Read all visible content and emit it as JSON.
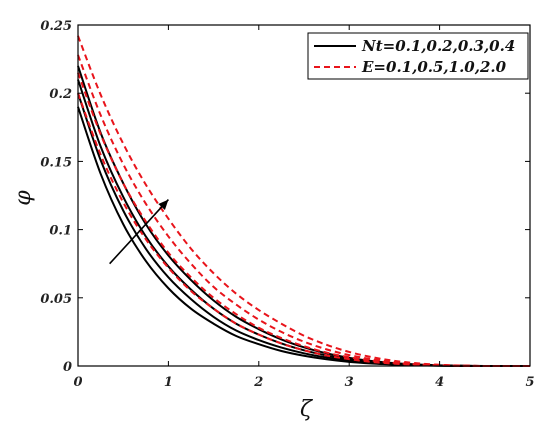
{
  "chart_data": {
    "type": "line",
    "xlabel": "ζ",
    "ylabel": "φ",
    "xlim": [
      0,
      5
    ],
    "ylim": [
      0,
      0.25
    ],
    "xticks": [
      "0",
      "1",
      "2",
      "3",
      "4",
      "5"
    ],
    "yticks": [
      "0",
      "0.05",
      "0.1",
      "0.15",
      "0.2",
      "0.25"
    ],
    "grid": false,
    "legend_position": "top-right",
    "legend": [
      {
        "label": "Nt=0.1,0.2,0.3,0.4",
        "color": "#000000",
        "style": "solid"
      },
      {
        "label": "E=0.1,0.5,1.0,2.0",
        "color": "#e8141b",
        "style": "dashed"
      }
    ],
    "x": [
      0,
      0.25,
      0.5,
      0.75,
      1,
      1.25,
      1.5,
      1.75,
      2,
      2.25,
      2.5,
      2.75,
      3,
      3.25,
      3.5,
      3.75,
      4,
      4.25,
      4.5,
      4.75,
      5
    ],
    "series": [
      {
        "group": "Nt",
        "color": "#000000",
        "style": "solid",
        "values": [
          0.19,
          0.141,
          0.104,
          0.077,
          0.057,
          0.042,
          0.031,
          0.022,
          0.016,
          0.011,
          0.0075,
          0.0049,
          0.003,
          0.0018,
          0.001,
          0.0005,
          0.0002,
          0.0001,
          0,
          0,
          0
        ]
      },
      {
        "group": "Nt",
        "color": "#000000",
        "style": "solid",
        "values": [
          0.2,
          0.151,
          0.114,
          0.086,
          0.065,
          0.049,
          0.036,
          0.026,
          0.019,
          0.0135,
          0.0093,
          0.0062,
          0.0039,
          0.0024,
          0.0013,
          0.0007,
          0.0003,
          0.0001,
          0,
          0,
          0
        ]
      },
      {
        "group": "Nt",
        "color": "#000000",
        "style": "solid",
        "values": [
          0.21,
          0.161,
          0.124,
          0.095,
          0.073,
          0.056,
          0.042,
          0.031,
          0.023,
          0.0165,
          0.0115,
          0.0077,
          0.005,
          0.0031,
          0.0017,
          0.0009,
          0.0004,
          0.0001,
          0,
          0,
          0
        ]
      },
      {
        "group": "Nt",
        "color": "#000000",
        "style": "solid",
        "values": [
          0.22,
          0.171,
          0.134,
          0.104,
          0.081,
          0.063,
          0.048,
          0.036,
          0.027,
          0.0195,
          0.0137,
          0.0093,
          0.006,
          0.0037,
          0.0021,
          0.0011,
          0.0005,
          0.0002,
          0,
          0,
          0
        ]
      },
      {
        "group": "E",
        "color": "#e8141b",
        "style": "dashed",
        "values": [
          0.2,
          0.155,
          0.12,
          0.093,
          0.072,
          0.055,
          0.042,
          0.031,
          0.023,
          0.0165,
          0.0115,
          0.0077,
          0.005,
          0.003,
          0.0017,
          0.0009,
          0.0004,
          0.0001,
          0,
          0,
          0
        ]
      },
      {
        "group": "E",
        "color": "#e8141b",
        "style": "dashed",
        "values": [
          0.215,
          0.17,
          0.134,
          0.106,
          0.083,
          0.065,
          0.05,
          0.038,
          0.028,
          0.0205,
          0.0145,
          0.0098,
          0.0064,
          0.004,
          0.0023,
          0.0012,
          0.0005,
          0.0002,
          0,
          0,
          0
        ]
      },
      {
        "group": "E",
        "color": "#e8141b",
        "style": "dashed",
        "values": [
          0.228,
          0.184,
          0.148,
          0.119,
          0.095,
          0.075,
          0.058,
          0.045,
          0.034,
          0.025,
          0.0178,
          0.0122,
          0.008,
          0.005,
          0.0029,
          0.0015,
          0.0007,
          0.0002,
          0,
          0,
          0
        ]
      },
      {
        "group": "E",
        "color": "#e8141b",
        "style": "dashed",
        "values": [
          0.242,
          0.199,
          0.163,
          0.133,
          0.108,
          0.086,
          0.068,
          0.053,
          0.041,
          0.031,
          0.0222,
          0.0155,
          0.0103,
          0.0065,
          0.0038,
          0.002,
          0.0009,
          0.0003,
          0,
          0,
          0
        ]
      }
    ],
    "annotations": [
      {
        "type": "arrow",
        "direction": "increasing",
        "from": [
          0.35,
          0.075
        ],
        "to": [
          1.0,
          0.122
        ]
      }
    ]
  }
}
